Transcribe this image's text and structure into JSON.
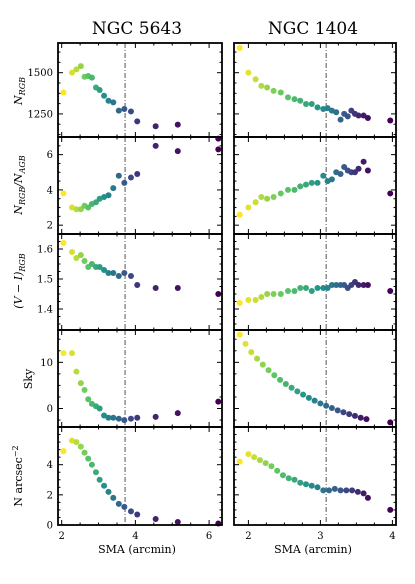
{
  "figure": {
    "col_titles": [
      "NGC 5643",
      "NGC 1404"
    ],
    "xlabel": "SMA (arcmin)",
    "row_labels": [
      "N",
      "N",
      "(V − I)",
      "Sky",
      "N arcsec"
    ],
    "row_label_subs": [
      "RGB",
      "RGB",
      "RGB",
      "",
      ""
    ],
    "row_label_tails": [
      "",
      "/N",
      "",
      "",
      ""
    ],
    "row_label_tail_subs": [
      "",
      "AGB",
      "",
      "",
      ""
    ],
    "row_label_sups": [
      "",
      "",
      "",
      "",
      "−2"
    ]
  },
  "chart_data": [
    {
      "type": "scatter",
      "panel": "NGC 5643",
      "row": 0,
      "ylabel": "N_RGB",
      "xlim": [
        1.9,
        6.35
      ],
      "ylim": [
        1110,
        1680
      ],
      "xticks": [
        2,
        4,
        6
      ],
      "yticks": [
        1250,
        1500
      ],
      "vline": 3.72,
      "x": [
        2.05,
        2.28,
        2.4,
        2.52,
        2.62,
        2.72,
        2.82,
        2.93,
        3.03,
        3.15,
        3.27,
        3.4,
        3.55,
        3.7,
        3.88,
        4.05,
        4.55,
        5.15,
        6.25
      ],
      "y": [
        1380,
        1500,
        1520,
        1540,
        1475,
        1480,
        1470,
        1410,
        1395,
        1360,
        1330,
        1320,
        1270,
        1280,
        1265,
        1205,
        1175,
        1185,
        1100
      ]
    },
    {
      "type": "scatter",
      "panel": "NGC 1404",
      "row": 0,
      "ylabel": "N_RGB",
      "xlim": [
        1.8,
        4.05
      ],
      "ylim": [
        1110,
        1680
      ],
      "xticks": [
        2,
        3,
        4
      ],
      "yticks": [
        1250,
        1500
      ],
      "vline": 3.08,
      "x": [
        1.88,
        2.0,
        2.1,
        2.18,
        2.26,
        2.35,
        2.45,
        2.55,
        2.64,
        2.72,
        2.8,
        2.88,
        2.96,
        3.04,
        3.1,
        3.16,
        3.22,
        3.28,
        3.33,
        3.38,
        3.43,
        3.48,
        3.53,
        3.6,
        3.66,
        3.97
      ],
      "y": [
        1650,
        1500,
        1460,
        1420,
        1410,
        1390,
        1380,
        1350,
        1340,
        1330,
        1310,
        1310,
        1290,
        1280,
        1285,
        1270,
        1260,
        1215,
        1250,
        1235,
        1270,
        1250,
        1240,
        1240,
        1225,
        1210
      ]
    },
    {
      "type": "scatter",
      "panel": "NGC 5643",
      "row": 1,
      "ylabel": "N_RGB/N_AGB",
      "xlim": [
        1.9,
        6.35
      ],
      "ylim": [
        1.5,
        7.0
      ],
      "xticks": [
        2,
        4,
        6
      ],
      "yticks": [
        2,
        4,
        6
      ],
      "vline": 3.72,
      "x": [
        2.05,
        2.28,
        2.4,
        2.52,
        2.62,
        2.72,
        2.82,
        2.93,
        3.03,
        3.15,
        3.27,
        3.4,
        3.55,
        3.7,
        3.88,
        4.05,
        4.55,
        5.15,
        6.25
      ],
      "y": [
        3.8,
        3.0,
        2.9,
        2.9,
        3.1,
        3.0,
        3.2,
        3.3,
        3.5,
        3.6,
        3.7,
        4.1,
        4.8,
        4.4,
        4.7,
        4.9,
        6.5,
        6.2,
        6.3
      ]
    },
    {
      "type": "scatter",
      "panel": "NGC 1404",
      "row": 1,
      "ylabel": "N_RGB/N_AGB",
      "xlim": [
        1.8,
        4.05
      ],
      "ylim": [
        1.5,
        7.0
      ],
      "xticks": [
        2,
        3,
        4
      ],
      "yticks": [
        2,
        4,
        6
      ],
      "vline": 3.08,
      "x": [
        1.88,
        2.0,
        2.1,
        2.18,
        2.26,
        2.35,
        2.45,
        2.55,
        2.64,
        2.72,
        2.8,
        2.88,
        2.96,
        3.04,
        3.1,
        3.16,
        3.22,
        3.28,
        3.33,
        3.38,
        3.43,
        3.48,
        3.53,
        3.6,
        3.66,
        3.97
      ],
      "y": [
        2.6,
        3.0,
        3.3,
        3.6,
        3.5,
        3.6,
        3.8,
        4.0,
        4.0,
        4.2,
        4.3,
        4.4,
        4.4,
        4.8,
        4.5,
        4.6,
        5.0,
        4.9,
        5.3,
        5.1,
        5.0,
        5.0,
        5.2,
        5.6,
        5.1,
        3.8
      ]
    },
    {
      "type": "scatter",
      "panel": "NGC 5643",
      "row": 2,
      "ylabel": "(V − I)_RGB",
      "xlim": [
        1.9,
        6.35
      ],
      "ylim": [
        1.33,
        1.65
      ],
      "xticks": [
        2,
        4,
        6
      ],
      "yticks": [
        1.4,
        1.5,
        1.6
      ],
      "vline": 3.72,
      "x": [
        2.05,
        2.28,
        2.4,
        2.52,
        2.62,
        2.72,
        2.82,
        2.93,
        3.03,
        3.15,
        3.27,
        3.4,
        3.55,
        3.7,
        3.88,
        4.05,
        4.55,
        5.15,
        6.25
      ],
      "y": [
        1.62,
        1.59,
        1.57,
        1.58,
        1.56,
        1.54,
        1.55,
        1.54,
        1.54,
        1.53,
        1.52,
        1.52,
        1.51,
        1.52,
        1.51,
        1.48,
        1.47,
        1.47,
        1.45
      ]
    },
    {
      "type": "scatter",
      "panel": "NGC 1404",
      "row": 2,
      "ylabel": "(V − I)_RGB",
      "xlim": [
        1.8,
        4.05
      ],
      "ylim": [
        1.33,
        1.65
      ],
      "xticks": [
        2,
        3,
        4
      ],
      "yticks": [
        1.4,
        1.5,
        1.6
      ],
      "vline": 3.08,
      "x": [
        1.88,
        2.0,
        2.1,
        2.18,
        2.26,
        2.35,
        2.45,
        2.55,
        2.64,
        2.72,
        2.8,
        2.88,
        2.96,
        3.04,
        3.1,
        3.16,
        3.22,
        3.28,
        3.33,
        3.38,
        3.43,
        3.48,
        3.53,
        3.6,
        3.66,
        3.97
      ],
      "y": [
        1.42,
        1.43,
        1.43,
        1.44,
        1.45,
        1.45,
        1.45,
        1.46,
        1.46,
        1.47,
        1.47,
        1.46,
        1.47,
        1.47,
        1.47,
        1.48,
        1.48,
        1.48,
        1.48,
        1.47,
        1.48,
        1.49,
        1.48,
        1.48,
        1.48,
        1.46
      ]
    },
    {
      "type": "scatter",
      "panel": "NGC 5643",
      "row": 3,
      "ylabel": "Sky",
      "xlim": [
        1.9,
        6.35
      ],
      "ylim": [
        -4,
        17
      ],
      "xticks": [
        2,
        4,
        6
      ],
      "yticks": [
        0,
        10
      ],
      "vline": 3.72,
      "x": [
        2.05,
        2.28,
        2.4,
        2.52,
        2.62,
        2.72,
        2.82,
        2.93,
        3.03,
        3.15,
        3.27,
        3.4,
        3.55,
        3.7,
        3.88,
        4.05,
        4.55,
        5.15,
        6.25
      ],
      "y": [
        12,
        12,
        8,
        5.5,
        4,
        2,
        1,
        0.5,
        0,
        -1.5,
        -2,
        -2,
        -2.2,
        -2.5,
        -2.2,
        -2,
        -1.8,
        -1,
        1.5
      ]
    },
    {
      "type": "scatter",
      "panel": "NGC 1404",
      "row": 3,
      "ylabel": "Sky",
      "xlim": [
        1.8,
        4.05
      ],
      "ylim": [
        -4,
        17
      ],
      "xticks": [
        2,
        3,
        4
      ],
      "yticks": [
        0,
        10
      ],
      "vline": 3.08,
      "x": [
        1.88,
        1.96,
        2.04,
        2.12,
        2.2,
        2.28,
        2.36,
        2.44,
        2.52,
        2.6,
        2.68,
        2.76,
        2.84,
        2.92,
        3.0,
        3.08,
        3.16,
        3.24,
        3.32,
        3.4,
        3.48,
        3.56,
        3.64,
        3.97
      ],
      "y": [
        16,
        14,
        12.2,
        10.8,
        9.5,
        8.3,
        7.2,
        6.2,
        5.3,
        4.5,
        3.7,
        3.0,
        2.3,
        1.7,
        1.1,
        0.6,
        0.1,
        -0.4,
        -0.8,
        -1.2,
        -1.6,
        -2.0,
        -2.3,
        -3.0
      ]
    },
    {
      "type": "scatter",
      "panel": "NGC 5643",
      "row": 4,
      "ylabel": "N arcsec^-2",
      "xlim": [
        1.9,
        6.35
      ],
      "ylim": [
        0,
        6.5
      ],
      "xticks": [
        2,
        4,
        6
      ],
      "yticks": [
        0,
        2,
        4
      ],
      "vline": 3.72,
      "x": [
        2.05,
        2.28,
        2.4,
        2.52,
        2.62,
        2.72,
        2.82,
        2.93,
        3.03,
        3.15,
        3.27,
        3.4,
        3.55,
        3.7,
        3.88,
        4.05,
        4.55,
        5.15,
        6.25
      ],
      "y": [
        4.9,
        5.6,
        5.5,
        5.2,
        4.8,
        4.4,
        4.0,
        3.5,
        3.0,
        2.6,
        2.2,
        1.8,
        1.4,
        1.2,
        0.9,
        0.7,
        0.4,
        0.2,
        0.1
      ]
    },
    {
      "type": "scatter",
      "panel": "NGC 1404",
      "row": 4,
      "ylabel": "N arcsec^-2",
      "xlim": [
        1.8,
        4.05
      ],
      "ylim": [
        0,
        6.5
      ],
      "xticks": [
        2,
        3,
        4
      ],
      "yticks": [
        0,
        2,
        4
      ],
      "vline": 3.08,
      "x": [
        1.88,
        2.0,
        2.08,
        2.16,
        2.24,
        2.32,
        2.4,
        2.48,
        2.56,
        2.64,
        2.72,
        2.8,
        2.88,
        2.96,
        3.04,
        3.12,
        3.2,
        3.28,
        3.36,
        3.44,
        3.52,
        3.6,
        3.66,
        3.97
      ],
      "y": [
        4.2,
        4.7,
        4.5,
        4.3,
        4.1,
        3.9,
        3.6,
        3.3,
        3.1,
        3.0,
        2.8,
        2.7,
        2.6,
        2.5,
        2.3,
        2.3,
        2.4,
        2.3,
        2.3,
        2.3,
        2.2,
        2.1,
        1.8,
        1.0
      ]
    }
  ]
}
